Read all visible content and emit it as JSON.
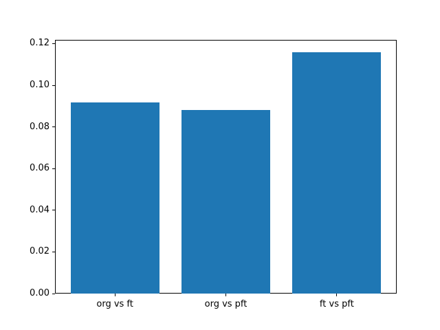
{
  "chart_data": {
    "type": "bar",
    "categories": [
      "org vs ft",
      "org vs pft",
      "ft vs pft"
    ],
    "values": [
      0.0916,
      0.088,
      0.116
    ],
    "title": "",
    "xlabel": "",
    "ylabel": "",
    "ylim": [
      0,
      0.1218
    ],
    "yticks": [
      0.0,
      0.02,
      0.04,
      0.06,
      0.08,
      0.1,
      0.12
    ],
    "ytick_labels": [
      "0.00",
      "0.02",
      "0.04",
      "0.06",
      "0.08",
      "0.10",
      "0.12"
    ],
    "bar_color": "#1f77b4",
    "bar_width_fraction": 0.8,
    "grid": false,
    "legend": null,
    "background_color": "#ffffff",
    "spine_color": "#000000"
  }
}
